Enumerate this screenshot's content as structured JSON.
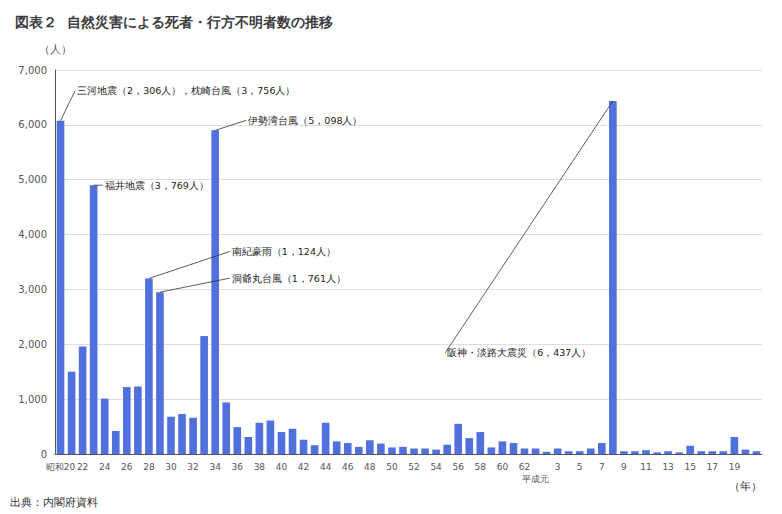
{
  "chart_data": {
    "type": "bar",
    "header_label": "図表２",
    "title": "自然災害による死者・行方不明者数の推移",
    "categories": [
      "昭和20",
      null,
      "22",
      null,
      "24",
      null,
      "26",
      null,
      "28",
      null,
      "30",
      null,
      "32",
      null,
      "34",
      null,
      "36",
      null,
      "38",
      null,
      "40",
      null,
      "42",
      null,
      "44",
      null,
      "46",
      null,
      "48",
      null,
      "50",
      null,
      "52",
      null,
      "54",
      null,
      "56",
      null,
      "58",
      null,
      "60",
      null,
      "62",
      "平成元",
      null,
      "3",
      null,
      "5",
      null,
      "7",
      null,
      "9",
      null,
      "11",
      null,
      "13",
      null,
      "15",
      null,
      "17",
      null,
      "19",
      null,
      null
    ],
    "values": [
      6075,
      1500,
      1960,
      4900,
      1010,
      420,
      1220,
      1230,
      3200,
      2950,
      680,
      730,
      660,
      2150,
      5900,
      940,
      490,
      310,
      570,
      610,
      400,
      460,
      260,
      160,
      570,
      230,
      200,
      130,
      250,
      190,
      120,
      130,
      100,
      100,
      80,
      170,
      550,
      290,
      400,
      120,
      230,
      200,
      100,
      100,
      40,
      100,
      50,
      50,
      100,
      200,
      6437,
      50,
      50,
      70,
      30,
      50,
      30,
      150,
      50,
      50,
      50,
      310,
      80,
      50
    ],
    "ylim": [
      0,
      7000
    ],
    "yticks": [
      0,
      {
        "value": 1000,
        "label": "1,000"
      },
      {
        "value": 2000,
        "label": "2,000"
      },
      {
        "value": 3000,
        "label": "3,000"
      },
      {
        "value": 4000,
        "label": "4,000"
      },
      {
        "value": 5000,
        "label": "5,000"
      },
      {
        "value": 6000,
        "label": "6,000"
      },
      {
        "value": 7000,
        "label": "7,000"
      }
    ],
    "grid": true,
    "ylabel": "（人）",
    "xlabel": "（年）",
    "annotations": [
      "三河地震（2，306人），枕崎台風（3，756人）",
      "伊勢湾台風（5，098人）",
      "福井地震（3，769人）",
      "南紀豪雨（1，124人）",
      "洞爺丸台風（1，761人）",
      "阪神・淡路大震災（6，437人）"
    ],
    "source": "出典：内閣府資料"
  }
}
